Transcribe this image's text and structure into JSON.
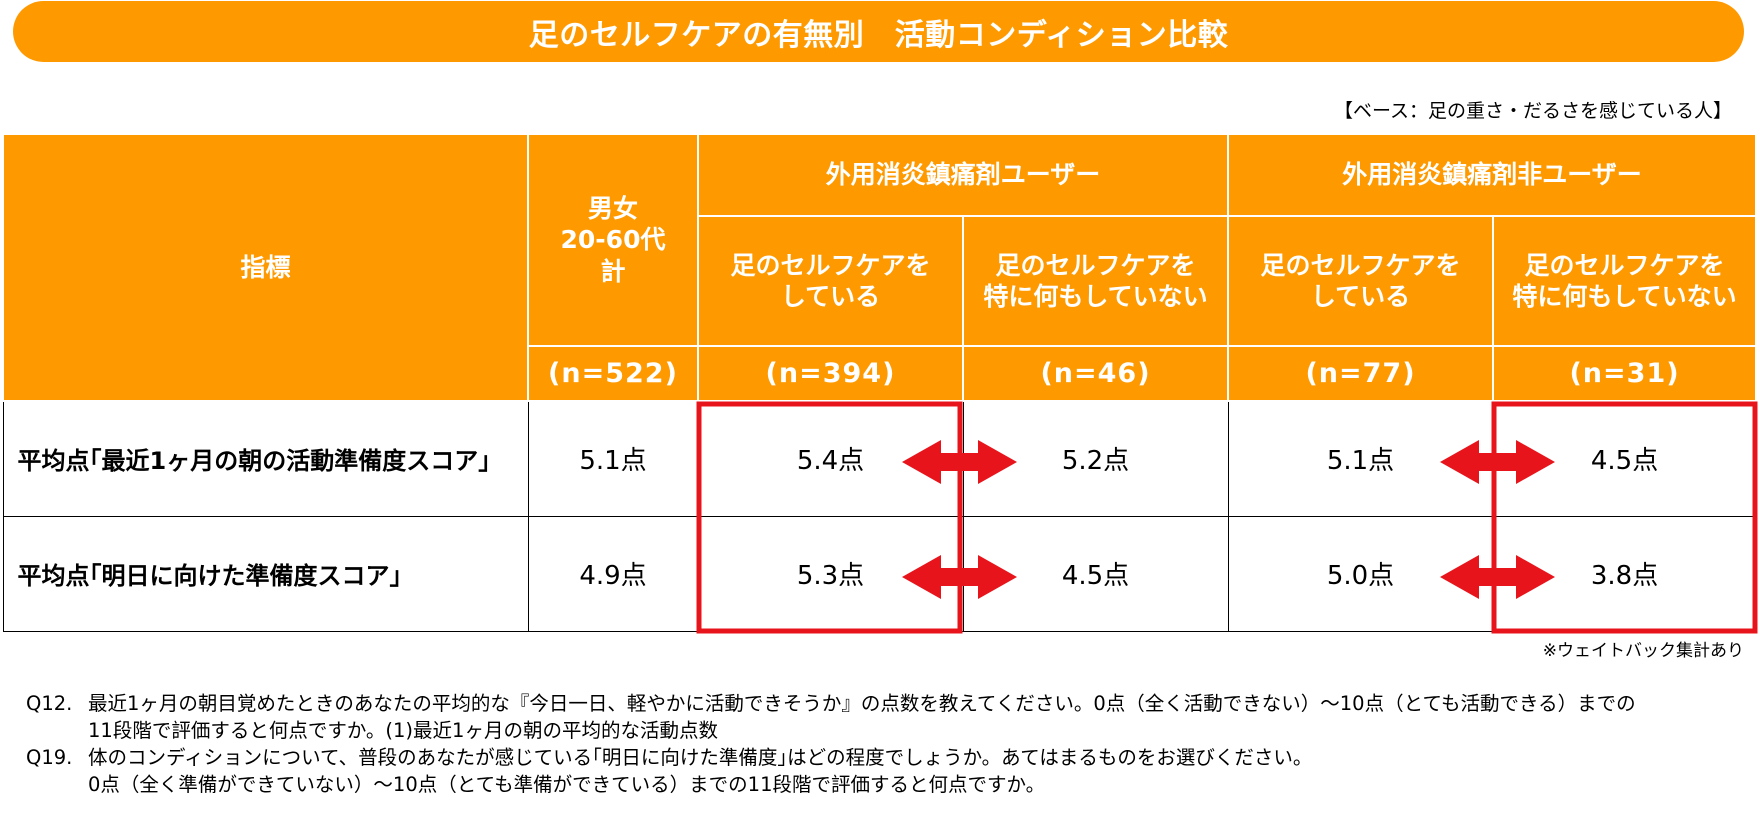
{
  "title": "足のセルフケアの有無別　活動コンディション比較",
  "base_note": "【ベース：足の重さ・だるさを感じている人】",
  "table": {
    "index_header": "指標",
    "total_header": "男女\n20-60代\n計",
    "groups": [
      "外用消炎鎮痛剤ユーザー",
      "外用消炎鎮痛剤非ユーザー"
    ],
    "subheaders": [
      "足のセルフケアを\nしている",
      "足のセルフケアを\n特に何もしていない",
      "足のセルフケアを\nしている",
      "足のセルフケアを\n特に何もしていない"
    ],
    "n_values": [
      "(n=522)",
      "(n=394)",
      "(n=46)",
      "(n=77)",
      "(n=31)"
    ],
    "rows": [
      {
        "label": "平均点｢最近1ヶ月の朝の活動準備度スコア｣",
        "values": [
          "5.1点",
          "5.4点",
          "5.2点",
          "5.1点",
          "4.5点"
        ]
      },
      {
        "label": "平均点｢明日に向けた準備度スコア｣",
        "values": [
          "4.9点",
          "5.3点",
          "4.5点",
          "5.0点",
          "3.8点"
        ]
      }
    ]
  },
  "highlight_color": "#E8141B",
  "weight_note": "※ウェイトバック集計あり",
  "questions": [
    {
      "num": "Q12.",
      "text": "最近1ヶ月の朝目覚めたときのあなたの平均的な『今日一日、軽やかに活動できそうか』の点数を教えてください。0点（全く活動できない）～10点（とても活動できる）までの\n11段階で評価すると何点ですか。(1)最近1ヶ月の朝の平均的な活動点数"
    },
    {
      "num": "Q19.",
      "text": "体のコンディションについて、普段のあなたが感じている｢明日に向けた準備度｣はどの程度でしょうか。あてはまるものをお選びください。\n0点（全く準備ができていない）～10点（とても準備ができている）までの11段階で評価すると何点ですか。"
    }
  ]
}
